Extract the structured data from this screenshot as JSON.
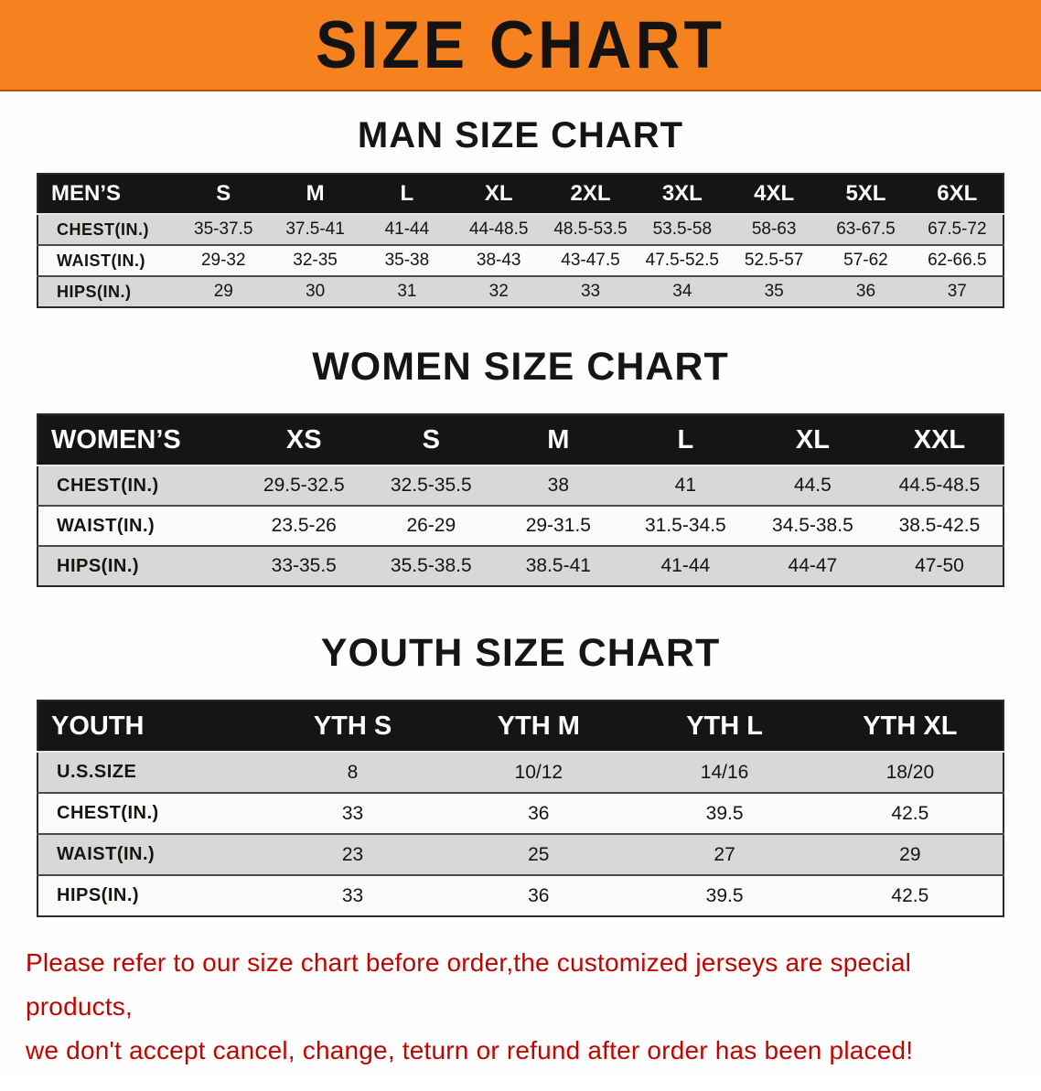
{
  "colors": {
    "banner_bg": "#f5821f",
    "header_bg": "#151515",
    "row_gray": "#d8d8d8",
    "footer_text": "#c00500"
  },
  "banner": {
    "title": "SIZE CHART"
  },
  "sections": [
    {
      "title": "MAN SIZE CHART",
      "table": {
        "header_label": "MEN’S",
        "columns": [
          "S",
          "M",
          "L",
          "XL",
          "2XL",
          "3XL",
          "4XL",
          "5XL",
          "6XL"
        ],
        "rows": [
          {
            "label": "CHEST(IN.)",
            "values": [
              "35-37.5",
              "37.5-41",
              "41-44",
              "44-48.5",
              "48.5-53.5",
              "53.5-58",
              "58-63",
              "63-67.5",
              "67.5-72"
            ]
          },
          {
            "label": "WAIST(IN.)",
            "values": [
              "29-32",
              "32-35",
              "35-38",
              "38-43",
              "43-47.5",
              "47.5-52.5",
              "52.5-57",
              "57-62",
              "62-66.5"
            ]
          },
          {
            "label": "HIPS(IN.)",
            "values": [
              "29",
              "30",
              "31",
              "32",
              "33",
              "34",
              "35",
              "36",
              "37"
            ]
          }
        ]
      }
    },
    {
      "title": "WOMEN SIZE CHART",
      "table": {
        "header_label": "WOMEN’S",
        "columns": [
          "XS",
          "S",
          "M",
          "L",
          "XL",
          "XXL"
        ],
        "rows": [
          {
            "label": "CHEST(IN.)",
            "values": [
              "29.5-32.5",
              "32.5-35.5",
              "38",
              "41",
              "44.5",
              "44.5-48.5"
            ]
          },
          {
            "label": "WAIST(IN.)",
            "values": [
              "23.5-26",
              "26-29",
              "29-31.5",
              "31.5-34.5",
              "34.5-38.5",
              "38.5-42.5"
            ]
          },
          {
            "label": "HIPS(IN.)",
            "values": [
              "33-35.5",
              "35.5-38.5",
              "38.5-41",
              "41-44",
              "44-47",
              "47-50"
            ]
          }
        ]
      }
    },
    {
      "title": "YOUTH SIZE CHART",
      "table": {
        "header_label": "YOUTH",
        "columns": [
          "YTH S",
          "YTH M",
          "YTH L",
          "YTH XL"
        ],
        "rows": [
          {
            "label": "U.S.SIZE",
            "values": [
              "8",
              "10/12",
              "14/16",
              "18/20"
            ]
          },
          {
            "label": "CHEST(IN.)",
            "values": [
              "33",
              "36",
              "39.5",
              "42.5"
            ]
          },
          {
            "label": "WAIST(IN.)",
            "values": [
              "23",
              "25",
              "27",
              "29"
            ]
          },
          {
            "label": "HIPS(IN.)",
            "values": [
              "33",
              "36",
              "39.5",
              "42.5"
            ]
          }
        ]
      }
    }
  ],
  "footer": {
    "line1": "Please refer to our size chart before order,the customized jerseys are special products,",
    "line2": "we don't accept cancel, change, teturn or refund after order has been placed!"
  }
}
